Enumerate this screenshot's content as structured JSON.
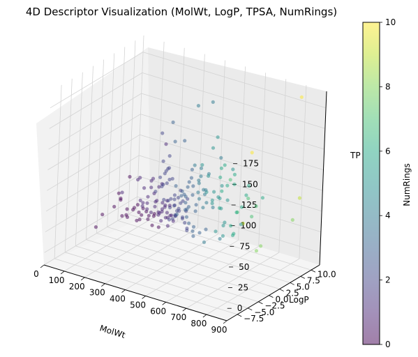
{
  "chart_data": {
    "type": "scatter",
    "projection": "3d",
    "title": "4D Descriptor Visualization (MolWt, LogP, TPSA, NumRings)",
    "xlabel": "MolWt",
    "ylabel": "LogP",
    "zlabel": "TPSA",
    "zlabel_visible_text": "TP",
    "colorbar_label": "NumRings",
    "colormap": "viridis",
    "marker_alpha": 0.5,
    "grid": true,
    "xlim": [
      0,
      900
    ],
    "ylim": [
      -10,
      12
    ],
    "zlim": [
      -15,
      195
    ],
    "clim": [
      0,
      10
    ],
    "x_ticks": [
      "0",
      "100",
      "200",
      "300",
      "400",
      "500",
      "600",
      "700",
      "800",
      "900"
    ],
    "y_ticks": [
      "−7.5",
      "−5.0",
      "−2.5",
      "0.0",
      "2.5",
      "5.0",
      "7.5",
      "10.0"
    ],
    "z_ticks": [
      "0",
      "25",
      "50",
      "75",
      "100",
      "125",
      "150",
      "175"
    ],
    "colorbar_ticks": [
      "0",
      "2",
      "4",
      "6",
      "8",
      "10"
    ],
    "point_columns": [
      "MolWt",
      "LogP",
      "TPSA",
      "NumRings"
    ],
    "points": [
      [
        240,
        4.5,
        35,
        1
      ],
      [
        260,
        3.8,
        40,
        1
      ],
      [
        280,
        4.2,
        30,
        1
      ],
      [
        300,
        3.5,
        45,
        2
      ],
      [
        320,
        4.0,
        38,
        1
      ],
      [
        340,
        3.2,
        50,
        2
      ],
      [
        360,
        4.6,
        42,
        2
      ],
      [
        380,
        3.0,
        55,
        2
      ],
      [
        400,
        3.8,
        48,
        3
      ],
      [
        420,
        2.8,
        60,
        3
      ],
      [
        250,
        2.5,
        25,
        0
      ],
      [
        270,
        2.0,
        32,
        1
      ],
      [
        290,
        2.8,
        28,
        1
      ],
      [
        310,
        1.8,
        36,
        1
      ],
      [
        330,
        2.4,
        44,
        1
      ],
      [
        350,
        2.1,
        52,
        2
      ],
      [
        370,
        2.7,
        46,
        2
      ],
      [
        390,
        1.6,
        58,
        2
      ],
      [
        410,
        2.2,
        62,
        3
      ],
      [
        430,
        1.9,
        66,
        3
      ],
      [
        200,
        3.2,
        20,
        0
      ],
      [
        215,
        3.6,
        24,
        0
      ],
      [
        230,
        3.0,
        30,
        1
      ],
      [
        245,
        4.1,
        22,
        0
      ],
      [
        260,
        3.4,
        34,
        1
      ],
      [
        275,
        4.4,
        26,
        1
      ],
      [
        290,
        3.7,
        40,
        1
      ],
      [
        305,
        4.8,
        32,
        2
      ],
      [
        320,
        3.3,
        46,
        1
      ],
      [
        335,
        4.3,
        38,
        2
      ],
      [
        350,
        3.6,
        54,
        2
      ],
      [
        365,
        4.9,
        44,
        2
      ],
      [
        380,
        3.9,
        60,
        3
      ],
      [
        395,
        4.5,
        50,
        2
      ],
      [
        410,
        3.7,
        68,
        3
      ],
      [
        425,
        4.2,
        58,
        3
      ],
      [
        440,
        3.5,
        72,
        3
      ],
      [
        455,
        4.0,
        64,
        4
      ],
      [
        470,
        3.4,
        78,
        4
      ],
      [
        485,
        3.8,
        70,
        4
      ],
      [
        300,
        5.5,
        20,
        1
      ],
      [
        320,
        5.8,
        26,
        2
      ],
      [
        340,
        5.2,
        32,
        2
      ],
      [
        360,
        6.0,
        28,
        2
      ],
      [
        380,
        5.6,
        36,
        3
      ],
      [
        400,
        6.3,
        30,
        3
      ],
      [
        420,
        5.4,
        42,
        3
      ],
      [
        440,
        6.1,
        38,
        4
      ],
      [
        460,
        5.9,
        46,
        4
      ],
      [
        480,
        6.5,
        40,
        4
      ],
      [
        220,
        1.2,
        40,
        0
      ],
      [
        240,
        0.8,
        48,
        1
      ],
      [
        260,
        1.5,
        44,
        1
      ],
      [
        280,
        0.6,
        56,
        1
      ],
      [
        300,
        1.1,
        60,
        1
      ],
      [
        320,
        0.4,
        66,
        2
      ],
      [
        340,
        0.9,
        72,
        2
      ],
      [
        360,
        0.2,
        78,
        2
      ],
      [
        380,
        0.7,
        84,
        2
      ],
      [
        400,
        1.3,
        76,
        3
      ],
      [
        150,
        2.0,
        20,
        0
      ],
      [
        170,
        2.6,
        26,
        0
      ],
      [
        190,
        1.9,
        32,
        0
      ],
      [
        210,
        2.3,
        18,
        0
      ],
      [
        180,
        3.1,
        12,
        0
      ],
      [
        195,
        2.8,
        24,
        0
      ],
      [
        165,
        1.4,
        30,
        0
      ],
      [
        225,
        2.1,
        36,
        1
      ],
      [
        235,
        1.7,
        42,
        1
      ],
      [
        205,
        3.3,
        28,
        0
      ],
      [
        440,
        2.5,
        80,
        3
      ],
      [
        460,
        2.0,
        88,
        3
      ],
      [
        480,
        2.8,
        84,
        4
      ],
      [
        500,
        2.3,
        92,
        4
      ],
      [
        520,
        2.6,
        76,
        4
      ],
      [
        540,
        2.1,
        96,
        5
      ],
      [
        470,
        1.6,
        100,
        3
      ],
      [
        490,
        1.2,
        108,
        4
      ],
      [
        510,
        1.8,
        104,
        4
      ],
      [
        530,
        1.0,
        112,
        5
      ],
      [
        450,
        4.6,
        54,
        4
      ],
      [
        470,
        4.9,
        60,
        4
      ],
      [
        490,
        4.3,
        66,
        5
      ],
      [
        510,
        4.8,
        56,
        5
      ],
      [
        530,
        4.1,
        70,
        5
      ],
      [
        550,
        4.6,
        62,
        5
      ],
      [
        570,
        4.0,
        74,
        6
      ],
      [
        500,
        5.3,
        50,
        5
      ],
      [
        520,
        5.7,
        58,
        5
      ],
      [
        540,
        5.1,
        48,
        6
      ],
      [
        200,
        4.8,
        10,
        0
      ],
      [
        220,
        5.2,
        14,
        0
      ],
      [
        240,
        5.6,
        18,
        1
      ],
      [
        260,
        5.0,
        12,
        1
      ],
      [
        280,
        6.2,
        16,
        1
      ],
      [
        230,
        4.4,
        6,
        0
      ],
      [
        250,
        6.6,
        10,
        1
      ],
      [
        270,
        4.0,
        8,
        0
      ],
      [
        290,
        7.0,
        14,
        2
      ],
      [
        310,
        6.8,
        22,
        2
      ],
      [
        320,
        1.4,
        80,
        2
      ],
      [
        340,
        1.8,
        88,
        2
      ],
      [
        360,
        1.2,
        94,
        2
      ],
      [
        330,
        2.6,
        70,
        2
      ],
      [
        350,
        2.9,
        76,
        2
      ],
      [
        280,
        3.2,
        60,
        1
      ],
      [
        300,
        2.9,
        66,
        1
      ],
      [
        260,
        2.7,
        70,
        1
      ],
      [
        240,
        3.3,
        64,
        1
      ],
      [
        220,
        2.6,
        56,
        1
      ],
      [
        130,
        1.5,
        40,
        0
      ],
      [
        110,
        1.0,
        30,
        0
      ],
      [
        140,
        0.5,
        50,
        0
      ],
      [
        160,
        0.0,
        45,
        0
      ],
      [
        120,
        2.5,
        15,
        0
      ],
      [
        70,
        0.2,
        20,
        0
      ],
      [
        95,
        -2.5,
        15,
        0
      ],
      [
        100,
        4.8,
        5,
        0
      ],
      [
        190,
        -1.2,
        60,
        1
      ],
      [
        170,
        6.8,
        40,
        1
      ],
      [
        130,
        3.5,
        60,
        0
      ],
      [
        290,
        4.0,
        110,
        1
      ],
      [
        330,
        1.5,
        100,
        2
      ],
      [
        350,
        3.2,
        120,
        3
      ],
      [
        370,
        1.5,
        150,
        3
      ],
      [
        420,
        2.0,
        130,
        3
      ],
      [
        450,
        3.5,
        170,
        4
      ],
      [
        500,
        4.5,
        175,
        4
      ],
      [
        430,
        -2.0,
        110,
        2
      ],
      [
        480,
        -1.5,
        85,
        2
      ],
      [
        260,
        -1.0,
        80,
        1
      ],
      [
        300,
        -2.5,
        90,
        1
      ],
      [
        380,
        -0.5,
        95,
        2
      ],
      [
        410,
        -1.0,
        120,
        2
      ],
      [
        350,
        0.0,
        140,
        2
      ],
      [
        560,
        4.0,
        90,
        6
      ],
      [
        600,
        5.5,
        80,
        6
      ],
      [
        620,
        3.0,
        70,
        5
      ],
      [
        660,
        4.5,
        60,
        6
      ],
      [
        700,
        5.0,
        50,
        7
      ],
      [
        650,
        2.0,
        100,
        7
      ],
      [
        680,
        1.5,
        110,
        6
      ],
      [
        720,
        2.5,
        85,
        6
      ],
      [
        580,
        6.0,
        95,
        5
      ],
      [
        640,
        1.0,
        120,
        6
      ],
      [
        600,
        3.5,
        40,
        5
      ],
      [
        620,
        6.5,
        30,
        5
      ],
      [
        550,
        7.5,
        20,
        6
      ],
      [
        680,
        7.0,
        55,
        7
      ],
      [
        600,
        8.0,
        25,
        9
      ],
      [
        580,
        3.2,
        105,
        6
      ],
      [
        500,
        7.0,
        100,
        4
      ],
      [
        480,
        8.5,
        60,
        5
      ],
      [
        540,
        6.8,
        70,
        6
      ],
      [
        460,
        6.2,
        80,
        4
      ],
      [
        600,
        2.5,
        60,
        5
      ],
      [
        650,
        3.8,
        55,
        6
      ],
      [
        630,
        5.0,
        50,
        7
      ],
      [
        700,
        4.0,
        75,
        7
      ],
      [
        720,
        3.0,
        95,
        6
      ],
      [
        770,
        3.0,
        20,
        8
      ],
      [
        780,
        3.5,
        25,
        8
      ],
      [
        800,
        11.5,
        60,
        9
      ],
      [
        880,
        -4.5,
        170,
        10
      ],
      [
        850,
        8.5,
        195,
        10
      ],
      [
        830,
        8.5,
        45,
        8
      ],
      [
        520,
        6.5,
        5,
        4
      ],
      [
        640,
        -1.0,
        160,
        5
      ],
      [
        640,
        -2.0,
        150,
        5
      ],
      [
        700,
        7.5,
        65,
        6
      ],
      [
        440,
        4.0,
        10,
        3
      ],
      [
        460,
        4.5,
        14,
        3
      ],
      [
        480,
        5.0,
        18,
        3
      ],
      [
        500,
        3.7,
        8,
        4
      ],
      [
        420,
        4.8,
        12,
        3
      ],
      [
        380,
        5.4,
        8,
        2
      ],
      [
        400,
        6.0,
        12,
        3
      ],
      [
        360,
        6.4,
        6,
        2
      ],
      [
        340,
        6.8,
        10,
        2
      ],
      [
        320,
        7.2,
        14,
        2
      ],
      [
        580,
        4.2,
        20,
        5
      ],
      [
        620,
        4.8,
        24,
        6
      ],
      [
        560,
        5.2,
        28,
        5
      ],
      [
        540,
        4.4,
        22,
        5
      ],
      [
        600,
        5.6,
        18,
        6
      ],
      [
        340,
        3.8,
        24,
        2
      ],
      [
        360,
        3.4,
        30,
        2
      ],
      [
        380,
        4.2,
        26,
        2
      ],
      [
        400,
        4.8,
        20,
        3
      ],
      [
        420,
        3.2,
        34,
        3
      ],
      [
        300,
        4.6,
        20,
        1
      ],
      [
        320,
        5.0,
        16,
        1
      ],
      [
        280,
        5.4,
        22,
        1
      ],
      [
        260,
        5.8,
        26,
        1
      ],
      [
        310,
        4.2,
        12,
        1
      ],
      [
        360,
        2.0,
        30,
        2
      ],
      [
        380,
        2.4,
        36,
        2
      ],
      [
        400,
        1.8,
        40,
        3
      ],
      [
        420,
        2.8,
        44,
        3
      ],
      [
        440,
        2.2,
        48,
        3
      ]
    ]
  }
}
